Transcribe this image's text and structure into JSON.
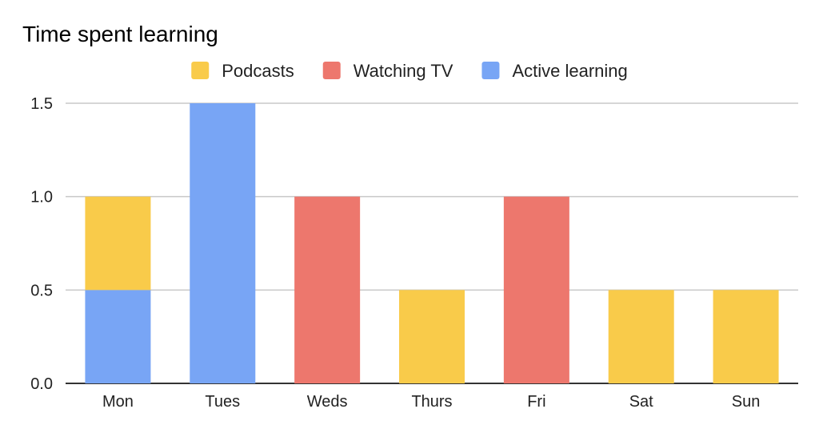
{
  "chart_data": {
    "type": "bar",
    "stacked": true,
    "title": "Time spent learning",
    "xlabel": "",
    "ylabel": "",
    "categories": [
      "Mon",
      "Tues",
      "Weds",
      "Thurs",
      "Fri",
      "Sat",
      "Sun"
    ],
    "series": [
      {
        "name": "Active learning",
        "color": "#78a5f5",
        "values": [
          0.5,
          1.5,
          0,
          0,
          0,
          0,
          0
        ]
      },
      {
        "name": "Podcasts",
        "color": "#f9cb4a",
        "values": [
          0.5,
          0,
          0,
          0.5,
          0,
          0.5,
          0.5
        ]
      },
      {
        "name": "Watching TV",
        "color": "#ed776d",
        "values": [
          0,
          0,
          1.0,
          0,
          1.0,
          0,
          0
        ]
      }
    ],
    "legend_order": [
      "Podcasts",
      "Watching TV",
      "Active learning"
    ],
    "legend_position": "top",
    "yticks": [
      "0.0",
      "0.5",
      "1.0",
      "1.5"
    ],
    "ylim": [
      0,
      1.5
    ],
    "grid": true
  }
}
